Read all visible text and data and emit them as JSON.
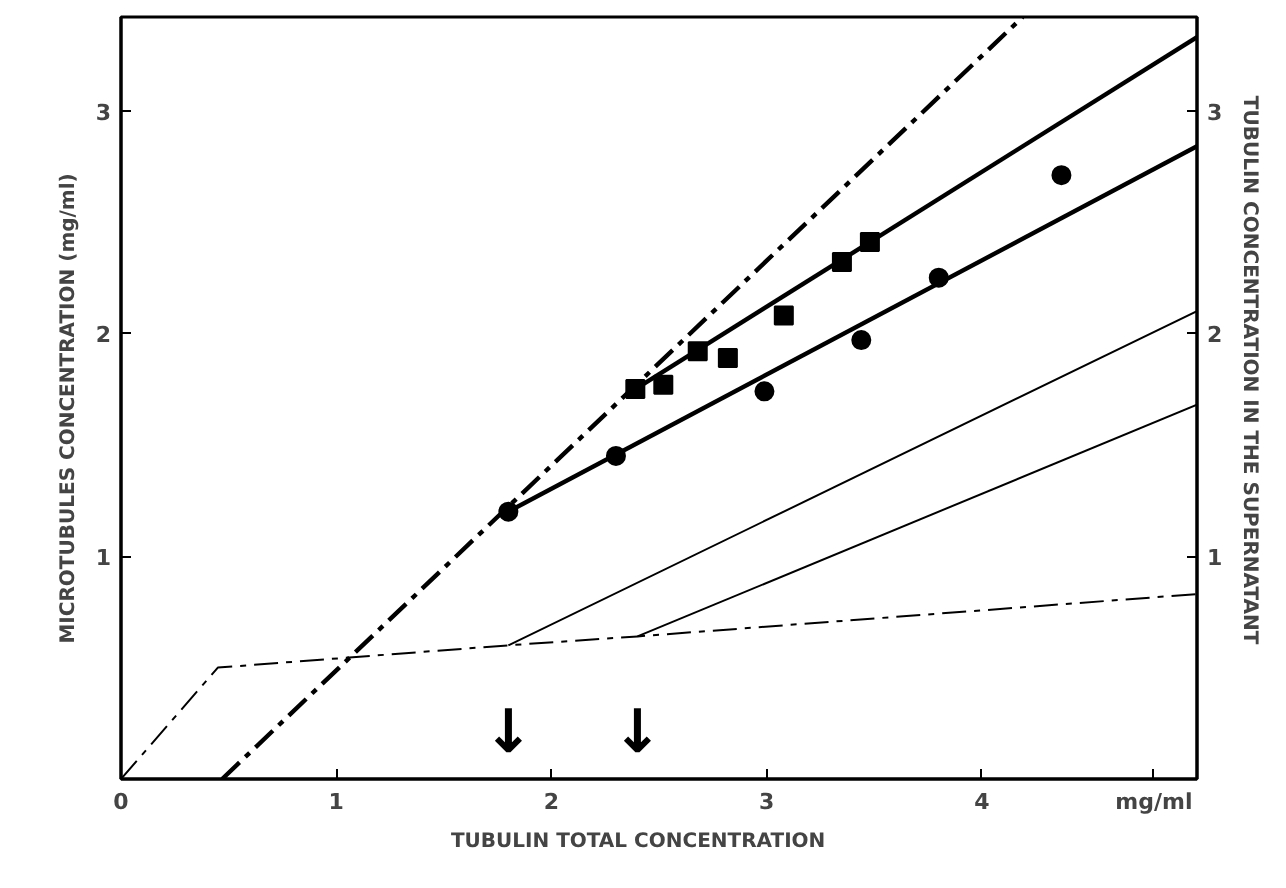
{
  "chart_data": {
    "type": "line",
    "xlabel": "TUBULIN    TOTAL    CONCENTRATION",
    "ylabel": "MICROTUBULES   CONCENTRATION  (mg/ml)",
    "y2label": "TUBULIN   CONCENTRATION   IN   THE   SUPERNATANT",
    "xlim": [
      0,
      5
    ],
    "ylim": [
      0,
      3.42
    ],
    "y2lim": [
      0,
      3.42
    ],
    "xticks": [
      0,
      1,
      2,
      3,
      4,
      {
        "value": 4.8,
        "label": "mg/ml"
      }
    ],
    "yticks": [
      1,
      2,
      3
    ],
    "y2ticks": [
      1,
      2,
      3
    ],
    "grid": false,
    "series": [
      {
        "type": "scatter",
        "marker": "circle",
        "color": "#000000",
        "x": [
          1.8,
          2.3,
          2.99,
          3.44,
          3.8,
          4.37
        ],
        "values": [
          1.2,
          1.45,
          1.74,
          1.97,
          2.25,
          2.71
        ]
      },
      {
        "type": "scatter",
        "marker": "square",
        "color": "#000000",
        "x": [
          2.39,
          2.52,
          2.68,
          2.82,
          3.08,
          3.35,
          3.48
        ],
        "values": [
          1.75,
          1.77,
          1.92,
          1.89,
          2.08,
          2.32,
          2.41
        ]
      },
      {
        "line_style": "solid",
        "color": "#000000",
        "x": [
          1.8,
          5
        ],
        "values": [
          1.2,
          2.84
        ]
      },
      {
        "line_style": "solid",
        "color": "#000000",
        "x": [
          2.39,
          5
        ],
        "values": [
          1.75,
          3.33
        ]
      },
      {
        "line_style": "dashed",
        "color": "#000000",
        "x": [
          0.47,
          4.19
        ],
        "values": [
          0,
          3.42
        ]
      },
      {
        "axis": "y2",
        "line_style": "dashed",
        "color": "#000000",
        "x": [
          0,
          0.45,
          1.8,
          2.4,
          5
        ],
        "values": [
          0,
          0.5,
          0.6,
          0.64,
          0.83
        ]
      },
      {
        "axis": "y2",
        "line_style": "solid",
        "color": "#000000",
        "x": [
          1.8,
          5
        ],
        "values": [
          0.6,
          2.1
        ]
      },
      {
        "axis": "y2",
        "line_style": "solid",
        "color": "#000000",
        "x": [
          2.4,
          5
        ],
        "values": [
          0.64,
          1.68
        ]
      }
    ],
    "annotations": [
      "↓",
      "↓"
    ]
  }
}
